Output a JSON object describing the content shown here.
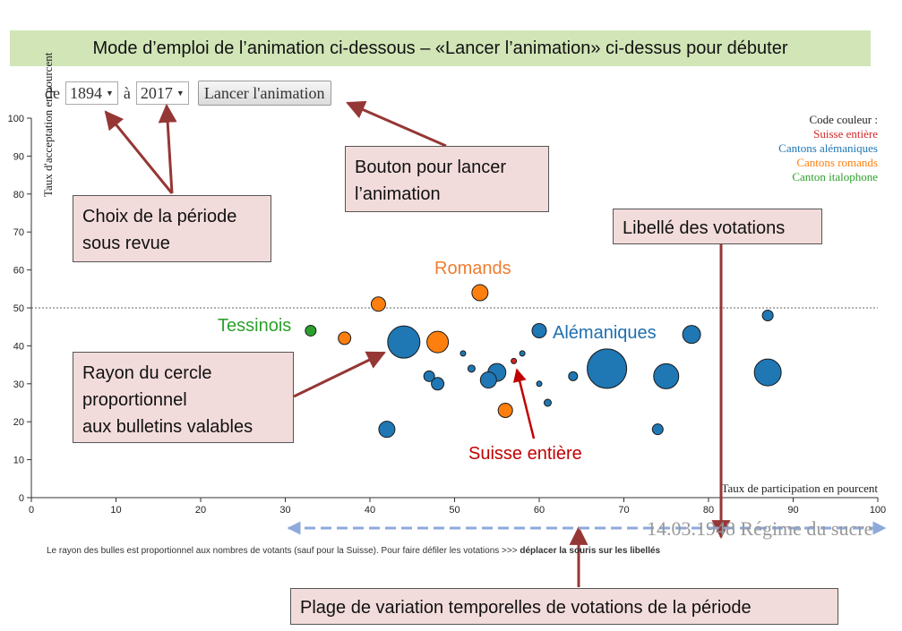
{
  "banner": "Mode d’emploi de l’animation ci-dessous – «Lancer l’animation» ci-dessus pour débuter",
  "controls": {
    "from_label": "de",
    "from_value": "1894",
    "to_label": "à",
    "to_value": "2017",
    "launch_label": "Lancer l'animation"
  },
  "callouts": {
    "period_line1": "Choix de la période",
    "period_line2": "sous revue",
    "launch_line1": "Bouton pour lancer",
    "launch_line2": "l’animation",
    "vote_label": "Libellé des votations",
    "radius_line1": "Rayon du cercle",
    "radius_line2": "proportionnel",
    "radius_line3": "aux bulletins valables",
    "range": "Plage de variation temporelles de votations de la période"
  },
  "group_labels": {
    "romands": "Romands",
    "tessinois": "Tessinois",
    "alemaniques": "Alémaniques",
    "suisse": "Suisse entière"
  },
  "legend": {
    "title": "Code couleur :",
    "items": [
      {
        "label": "Suisse entière",
        "color": "#d62728"
      },
      {
        "label": "Cantons alémaniques",
        "color": "#1f77b4"
      },
      {
        "label": "Cantons romands",
        "color": "#ff7f0e"
      },
      {
        "label": "Canton italophone",
        "color": "#2ca02c"
      }
    ]
  },
  "vote_title": "14.03.1948 Régime du sucre",
  "footnote_normal": "Le rayon des bulles est proportionnel aux nombres de votants (sauf pour la Suisse). Pour faire défiler les votations >>> ",
  "footnote_bold": "déplacer la souris sur les libellés",
  "chart_data": {
    "type": "scatter",
    "xlabel": "Taux de participation en pourcent",
    "ylabel": "Taux d'acceptation en pourcent",
    "xlim": [
      0,
      100
    ],
    "ylim": [
      0,
      100
    ],
    "xticks": [
      0,
      10,
      20,
      30,
      40,
      50,
      60,
      70,
      80,
      90,
      100
    ],
    "yticks": [
      0,
      10,
      20,
      30,
      40,
      50,
      60,
      70,
      80,
      90,
      100
    ],
    "reference_line_y": 50,
    "colors": {
      "suisse": "#d62728",
      "alemaniques": "#1f77b4",
      "romands": "#ff7f0e",
      "italophone": "#2ca02c"
    },
    "points": [
      {
        "x": 57,
        "y": 36,
        "size": 3,
        "group": "suisse"
      },
      {
        "x": 33,
        "y": 44,
        "size": 6,
        "group": "italophone"
      },
      {
        "x": 37,
        "y": 42,
        "size": 7,
        "group": "romands"
      },
      {
        "x": 41,
        "y": 51,
        "size": 8,
        "group": "romands"
      },
      {
        "x": 48,
        "y": 41,
        "size": 12,
        "group": "romands"
      },
      {
        "x": 53,
        "y": 54,
        "size": 9,
        "group": "romands"
      },
      {
        "x": 56,
        "y": 23,
        "size": 8,
        "group": "romands"
      },
      {
        "x": 44,
        "y": 41,
        "size": 18,
        "group": "alemaniques"
      },
      {
        "x": 42,
        "y": 18,
        "size": 9,
        "group": "alemaniques"
      },
      {
        "x": 47,
        "y": 32,
        "size": 6,
        "group": "alemaniques"
      },
      {
        "x": 48,
        "y": 30,
        "size": 7,
        "group": "alemaniques"
      },
      {
        "x": 51,
        "y": 38,
        "size": 3,
        "group": "alemaniques"
      },
      {
        "x": 52,
        "y": 34,
        "size": 4,
        "group": "alemaniques"
      },
      {
        "x": 54,
        "y": 31,
        "size": 9,
        "group": "alemaniques"
      },
      {
        "x": 55,
        "y": 33,
        "size": 10,
        "group": "alemaniques"
      },
      {
        "x": 58,
        "y": 38,
        "size": 3,
        "group": "alemaniques"
      },
      {
        "x": 60,
        "y": 44,
        "size": 8,
        "group": "alemaniques"
      },
      {
        "x": 60,
        "y": 30,
        "size": 3,
        "group": "alemaniques"
      },
      {
        "x": 61,
        "y": 25,
        "size": 4,
        "group": "alemaniques"
      },
      {
        "x": 64,
        "y": 32,
        "size": 5,
        "group": "alemaniques"
      },
      {
        "x": 68,
        "y": 34,
        "size": 22,
        "group": "alemaniques"
      },
      {
        "x": 74,
        "y": 18,
        "size": 6,
        "group": "alemaniques"
      },
      {
        "x": 75,
        "y": 32,
        "size": 14,
        "group": "alemaniques"
      },
      {
        "x": 78,
        "y": 43,
        "size": 10,
        "group": "alemaniques"
      },
      {
        "x": 87,
        "y": 48,
        "size": 6,
        "group": "alemaniques"
      },
      {
        "x": 87,
        "y": 33,
        "size": 15,
        "group": "alemaniques"
      }
    ]
  }
}
